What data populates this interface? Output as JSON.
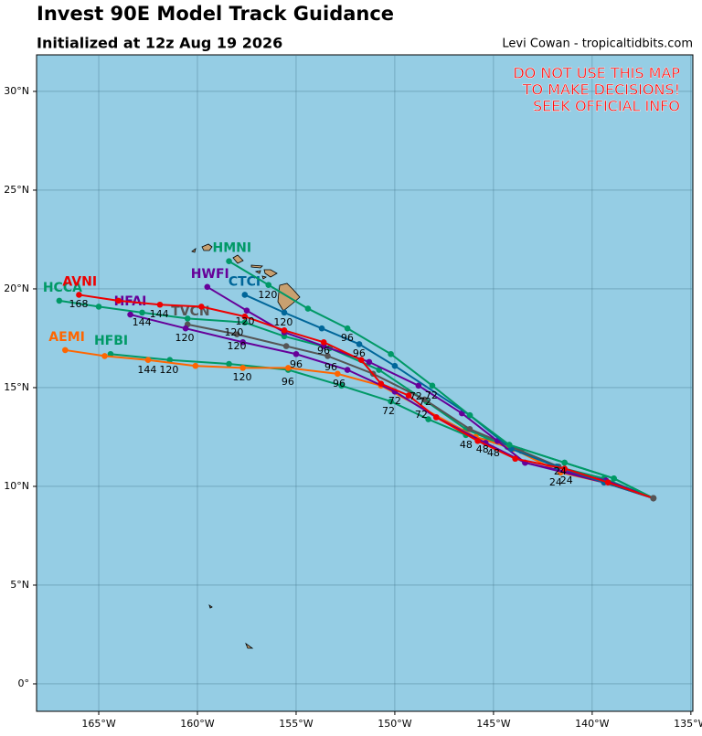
{
  "chart_data": {
    "type": "line",
    "title": "Invest 90E Model Track Guidance",
    "subtitle": "Initialized at 12z Aug 19 2026",
    "credit": "Levi Cowan - tropicaltidbits.com",
    "warning": [
      "DO NOT USE THIS MAP",
      "TO MAKE DECISIONS!",
      "SEEK OFFICIAL INFO"
    ],
    "xlim": [
      -168.15,
      -134.9
    ],
    "ylim": [
      -1.39,
      31.85
    ],
    "grid": true,
    "xticks": [
      {
        "value": -165,
        "label": "165°W"
      },
      {
        "value": -160,
        "label": "160°W"
      },
      {
        "value": -155,
        "label": "155°W"
      },
      {
        "value": -150,
        "label": "150°W"
      },
      {
        "value": -145,
        "label": "145°W"
      },
      {
        "value": -140,
        "label": "140°W"
      },
      {
        "value": -135,
        "label": "135°W"
      }
    ],
    "yticks": [
      {
        "value": 0,
        "label": "0°"
      },
      {
        "value": 5,
        "label": "5°N"
      },
      {
        "value": 10,
        "label": "10°N"
      },
      {
        "value": 15,
        "label": "15°N"
      },
      {
        "value": 20,
        "label": "20°N"
      },
      {
        "value": 25,
        "label": "25°N"
      },
      {
        "value": 30,
        "label": "30°N"
      }
    ],
    "series": [
      {
        "name": "HCCA",
        "color": "#009966",
        "x": [
          -136.9,
          -139.4,
          -141.8,
          -144.3,
          -146.4,
          -148.4,
          -150.8,
          -153.3,
          -155.6,
          -157.6,
          -160.5,
          -162.8,
          -165.0,
          -167.0
        ],
        "values": [
          9.4,
          10.4,
          11.0,
          12.0,
          12.9,
          14.3,
          15.9,
          17.0,
          17.6,
          18.3,
          18.5,
          18.8,
          19.1,
          19.4
        ]
      },
      {
        "name": "HFBI",
        "color": "#009966",
        "x": [
          -136.9,
          -138.9,
          -141.4,
          -144.2,
          -146.4,
          -148.3,
          -150.2,
          -152.7,
          -155.4,
          -158.4,
          -161.4,
          -164.4
        ],
        "values": [
          9.4,
          10.4,
          11.2,
          12.1,
          12.6,
          13.4,
          14.3,
          15.1,
          15.9,
          16.2,
          16.4,
          16.7
        ]
      },
      {
        "name": "AEMI",
        "color": "#ff6600",
        "x": [
          -136.9,
          -139.4,
          -141.6,
          -144.0,
          -145.9,
          -150.7,
          -152.9,
          -155.4,
          -157.7,
          -160.1,
          -162.5,
          -164.7,
          -166.7
        ],
        "values": [
          9.4,
          10.2,
          10.7,
          11.9,
          12.5,
          15.1,
          15.7,
          16.0,
          16.0,
          16.1,
          16.4,
          16.6,
          16.9
        ]
      },
      {
        "name": "TVCN",
        "color": "#555555",
        "x": [
          -136.9,
          -139.2,
          -141.7,
          -143.6,
          -146.2,
          -148.5,
          -151.1,
          -153.4,
          -155.5,
          -158.0,
          -160.5
        ],
        "values": [
          9.4,
          10.2,
          11.0,
          11.8,
          12.9,
          14.4,
          15.7,
          16.6,
          17.1,
          17.7,
          18.2
        ]
      },
      {
        "name": "HFAI",
        "color": "#660099",
        "x": [
          -136.9,
          -139.4,
          -143.4,
          -145.4,
          -147.9,
          -150.0,
          -152.4,
          -155.0,
          -157.7,
          -160.6,
          -163.4
        ],
        "values": [
          9.4,
          10.2,
          11.2,
          12.2,
          13.5,
          14.8,
          15.9,
          16.7,
          17.3,
          18.0,
          18.7
        ]
      },
      {
        "name": "HWFI",
        "color": "#660099",
        "x": [
          -136.9,
          -139.3,
          -143.4,
          -144.8,
          -146.6,
          -148.8,
          -151.3,
          -153.6,
          -155.6,
          -157.5,
          -159.5
        ],
        "values": [
          9.4,
          10.3,
          11.2,
          12.3,
          13.7,
          15.1,
          16.3,
          17.1,
          17.8,
          18.9,
          20.1
        ]
      },
      {
        "name": "CTCI",
        "color": "#006699",
        "x": [
          -136.9,
          -139.4,
          -141.8,
          -144.1,
          -146.2,
          -150.0,
          -151.8,
          -153.7,
          -155.6,
          -157.6
        ],
        "values": [
          9.4,
          10.2,
          11.0,
          11.9,
          13.6,
          16.1,
          17.2,
          18.0,
          18.8,
          19.7
        ]
      },
      {
        "name": "HMNI",
        "color": "#009966",
        "x": [
          -136.9,
          -138.9,
          -141.4,
          -144.2,
          -146.2,
          -148.1,
          -150.2,
          -152.4,
          -154.4,
          -156.4,
          -158.4
        ],
        "values": [
          9.4,
          10.4,
          11.2,
          12.1,
          13.6,
          15.1,
          16.7,
          18.0,
          19.0,
          20.2,
          21.4
        ]
      },
      {
        "name": "AVNI",
        "color": "#ee0000",
        "x": [
          -136.9,
          -139.2,
          -141.4,
          -143.9,
          -145.8,
          -147.9,
          -149.3,
          -150.7,
          -151.7,
          -153.6,
          -155.6,
          -157.6,
          -159.8,
          -161.9,
          -164.0,
          -166.0
        ],
        "values": [
          9.4,
          10.2,
          10.9,
          11.4,
          12.3,
          13.5,
          14.6,
          15.2,
          16.4,
          17.3,
          17.9,
          18.6,
          19.1,
          19.2,
          19.4,
          19.7
        ]
      }
    ],
    "hour_labels": [
      {
        "text": "168",
        "x": -166.02,
        "y": 19.21
      },
      {
        "text": "144",
        "x": -161.94,
        "y": 18.7
      },
      {
        "text": "144",
        "x": -162.82,
        "y": 18.29
      },
      {
        "text": "120",
        "x": -156.44,
        "y": 19.68
      },
      {
        "text": "120",
        "x": -155.65,
        "y": 18.29
      },
      {
        "text": "120",
        "x": -157.59,
        "y": 18.33
      },
      {
        "text": "120",
        "x": -160.65,
        "y": 17.5
      },
      {
        "text": "120",
        "x": -158.15,
        "y": 17.78
      },
      {
        "text": "120",
        "x": -158.01,
        "y": 17.08
      },
      {
        "text": "144",
        "x": -162.55,
        "y": 15.88
      },
      {
        "text": "120",
        "x": -161.44,
        "y": 15.88
      },
      {
        "text": "120",
        "x": -157.73,
        "y": 15.51
      },
      {
        "text": "96",
        "x": -152.41,
        "y": 17.5
      },
      {
        "text": "96",
        "x": -151.81,
        "y": 16.71
      },
      {
        "text": "96",
        "x": -153.61,
        "y": 16.85
      },
      {
        "text": "96",
        "x": -155.0,
        "y": 16.16
      },
      {
        "text": "96",
        "x": -153.24,
        "y": 16.02
      },
      {
        "text": "96",
        "x": -155.42,
        "y": 15.28
      },
      {
        "text": "96",
        "x": -152.82,
        "y": 15.19
      },
      {
        "text": "72",
        "x": -150.32,
        "y": 13.8
      },
      {
        "text": "72",
        "x": -148.15,
        "y": 14.58
      },
      {
        "text": "72",
        "x": -148.94,
        "y": 14.54
      },
      {
        "text": "72",
        "x": -148.47,
        "y": 14.26
      },
      {
        "text": "72",
        "x": -148.66,
        "y": 13.61
      },
      {
        "text": "72",
        "x": -150.0,
        "y": 14.31
      },
      {
        "text": "48",
        "x": -146.39,
        "y": 12.08
      },
      {
        "text": "48",
        "x": -145.56,
        "y": 11.85
      },
      {
        "text": "48",
        "x": -145.0,
        "y": 11.67
      },
      {
        "text": "24",
        "x": -141.62,
        "y": 10.74
      },
      {
        "text": "24",
        "x": -141.3,
        "y": 10.28
      },
      {
        "text": "24",
        "x": -141.85,
        "y": 10.19
      }
    ]
  }
}
